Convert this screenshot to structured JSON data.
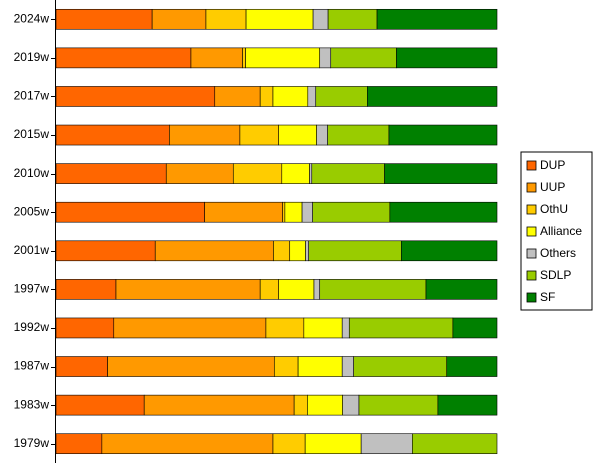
{
  "chart_data": {
    "type": "stacked-bar-horizontal",
    "categories": [
      "2024w",
      "2019w",
      "2017w",
      "2015w",
      "2010w",
      "2005w",
      "2001w",
      "1997w",
      "1992w",
      "1987w",
      "1983w",
      "1979w"
    ],
    "xlim": [
      0,
      100
    ],
    "legend": "right",
    "series": [
      {
        "name": "DUP",
        "color": "#ff6600",
        "values": [
          21.8,
          30.6,
          36.0,
          25.7,
          25.0,
          33.7,
          22.5,
          13.6,
          13.1,
          11.7,
          20.0,
          10.4
        ]
      },
      {
        "name": "UUP",
        "color": "#ff9900",
        "values": [
          12.2,
          11.7,
          10.3,
          16.0,
          15.2,
          17.7,
          26.8,
          32.7,
          34.5,
          37.8,
          34.0,
          38.8
        ]
      },
      {
        "name": "OthU",
        "color": "#ffcc00",
        "values": [
          9.1,
          0.7,
          2.9,
          8.8,
          11.0,
          0.5,
          3.7,
          4.2,
          8.6,
          5.4,
          3.0,
          7.3
        ]
      },
      {
        "name": "Alliance",
        "color": "#ffff00",
        "values": [
          15.2,
          16.8,
          7.9,
          8.6,
          6.3,
          3.9,
          3.6,
          8.0,
          8.7,
          10.0,
          8.0,
          12.7
        ]
      },
      {
        "name": "Others",
        "color": "#c0c0c0",
        "values": [
          3.4,
          2.5,
          1.8,
          2.5,
          0.5,
          2.4,
          0.7,
          1.3,
          1.6,
          2.6,
          3.7,
          11.6
        ]
      },
      {
        "name": "SDLP",
        "color": "#99cc00",
        "values": [
          11.1,
          14.9,
          11.7,
          13.9,
          16.5,
          17.5,
          21.0,
          24.1,
          23.5,
          21.1,
          17.9,
          19.2
        ]
      },
      {
        "name": "SF",
        "color": "#008000",
        "values": [
          27.2,
          22.8,
          29.4,
          24.5,
          25.5,
          24.3,
          21.7,
          16.1,
          10.0,
          11.4,
          13.4,
          0
        ]
      }
    ]
  }
}
